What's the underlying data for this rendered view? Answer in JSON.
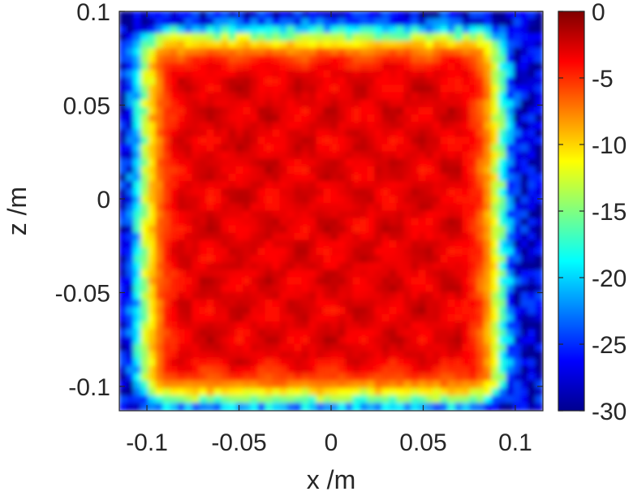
{
  "chart_data": {
    "type": "heatmap",
    "title": "",
    "xlabel": "x /m",
    "ylabel": "z /m",
    "xlim": [
      -0.115,
      0.115
    ],
    "ylim": [
      -0.113,
      0.1
    ],
    "xticks": [
      -0.1,
      -0.05,
      0,
      0.05,
      0.1
    ],
    "xtick_labels": [
      "-0.1",
      "-0.05",
      "0",
      "0.05",
      "0.1"
    ],
    "yticks": [
      -0.1,
      -0.05,
      0,
      0.05,
      0.1
    ],
    "ytick_labels": [
      "-0.1",
      "-0.05",
      "0",
      "0.05",
      "0.1"
    ],
    "colorbar": {
      "range": [
        -30,
        0
      ],
      "ticks": [
        0,
        -5,
        -10,
        -15,
        -20,
        -25,
        -30
      ],
      "tick_labels": [
        "0",
        "-5",
        "-10",
        "-15",
        "-20",
        "-25",
        "-30"
      ],
      "colormap": "jet",
      "colormap_stops": [
        "#00008F",
        "#0000FF",
        "#0080FF",
        "#00FFFF",
        "#80FF80",
        "#FFFF00",
        "#FF8000",
        "#FF0000",
        "#800000"
      ]
    },
    "region": {
      "description_values": "high-level plateau of roughly 0 to -4 inside a rounded square, falling to about -28 outside",
      "x_range": [
        -0.1,
        0.09
      ],
      "z_range": [
        -0.105,
        0.085
      ],
      "plateau_level": -3,
      "background_level": -28
    },
    "grid": false
  }
}
